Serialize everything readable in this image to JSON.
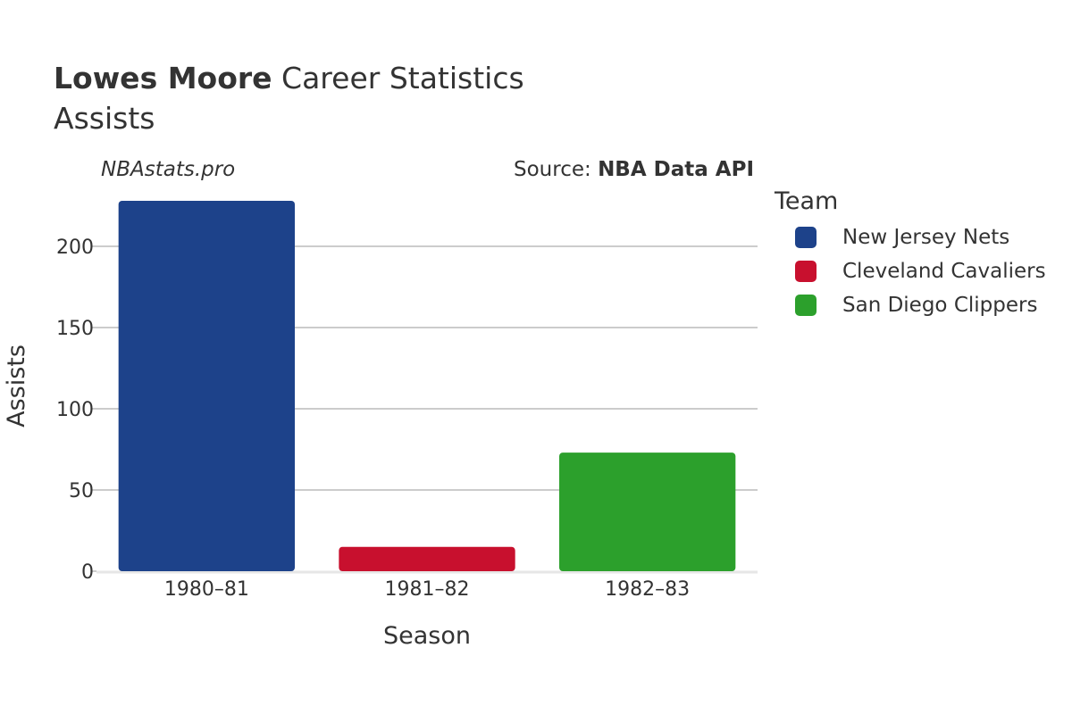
{
  "header": {
    "player_name": "Lowes Moore",
    "title_rest": "Career Statistics",
    "subtitle": "Assists",
    "watermark": "NBAstats.pro",
    "source_prefix": "Source: ",
    "source_name": "NBA Data API"
  },
  "legend": {
    "title": "Team",
    "items": [
      {
        "label": "New Jersey Nets",
        "color": "#1d428a"
      },
      {
        "label": "Cleveland Cavaliers",
        "color": "#c8102e"
      },
      {
        "label": "San Diego Clippers",
        "color": "#2ca02c"
      }
    ]
  },
  "chart_data": {
    "type": "bar",
    "categories": [
      "1980–81",
      "1981–82",
      "1982–83"
    ],
    "series": [
      {
        "name": "New Jersey Nets",
        "color": "#1d428a",
        "values": [
          228,
          null,
          null
        ]
      },
      {
        "name": "Cleveland Cavaliers",
        "color": "#c8102e",
        "values": [
          null,
          15,
          null
        ]
      },
      {
        "name": "San Diego Clippers",
        "color": "#2ca02c",
        "values": [
          null,
          null,
          73
        ]
      }
    ],
    "xlabel": "Season",
    "ylabel": "Assists",
    "ylim": [
      0,
      228
    ],
    "yticks": [
      0,
      50,
      100,
      150,
      200
    ],
    "grid": true,
    "legend_position": "right"
  }
}
